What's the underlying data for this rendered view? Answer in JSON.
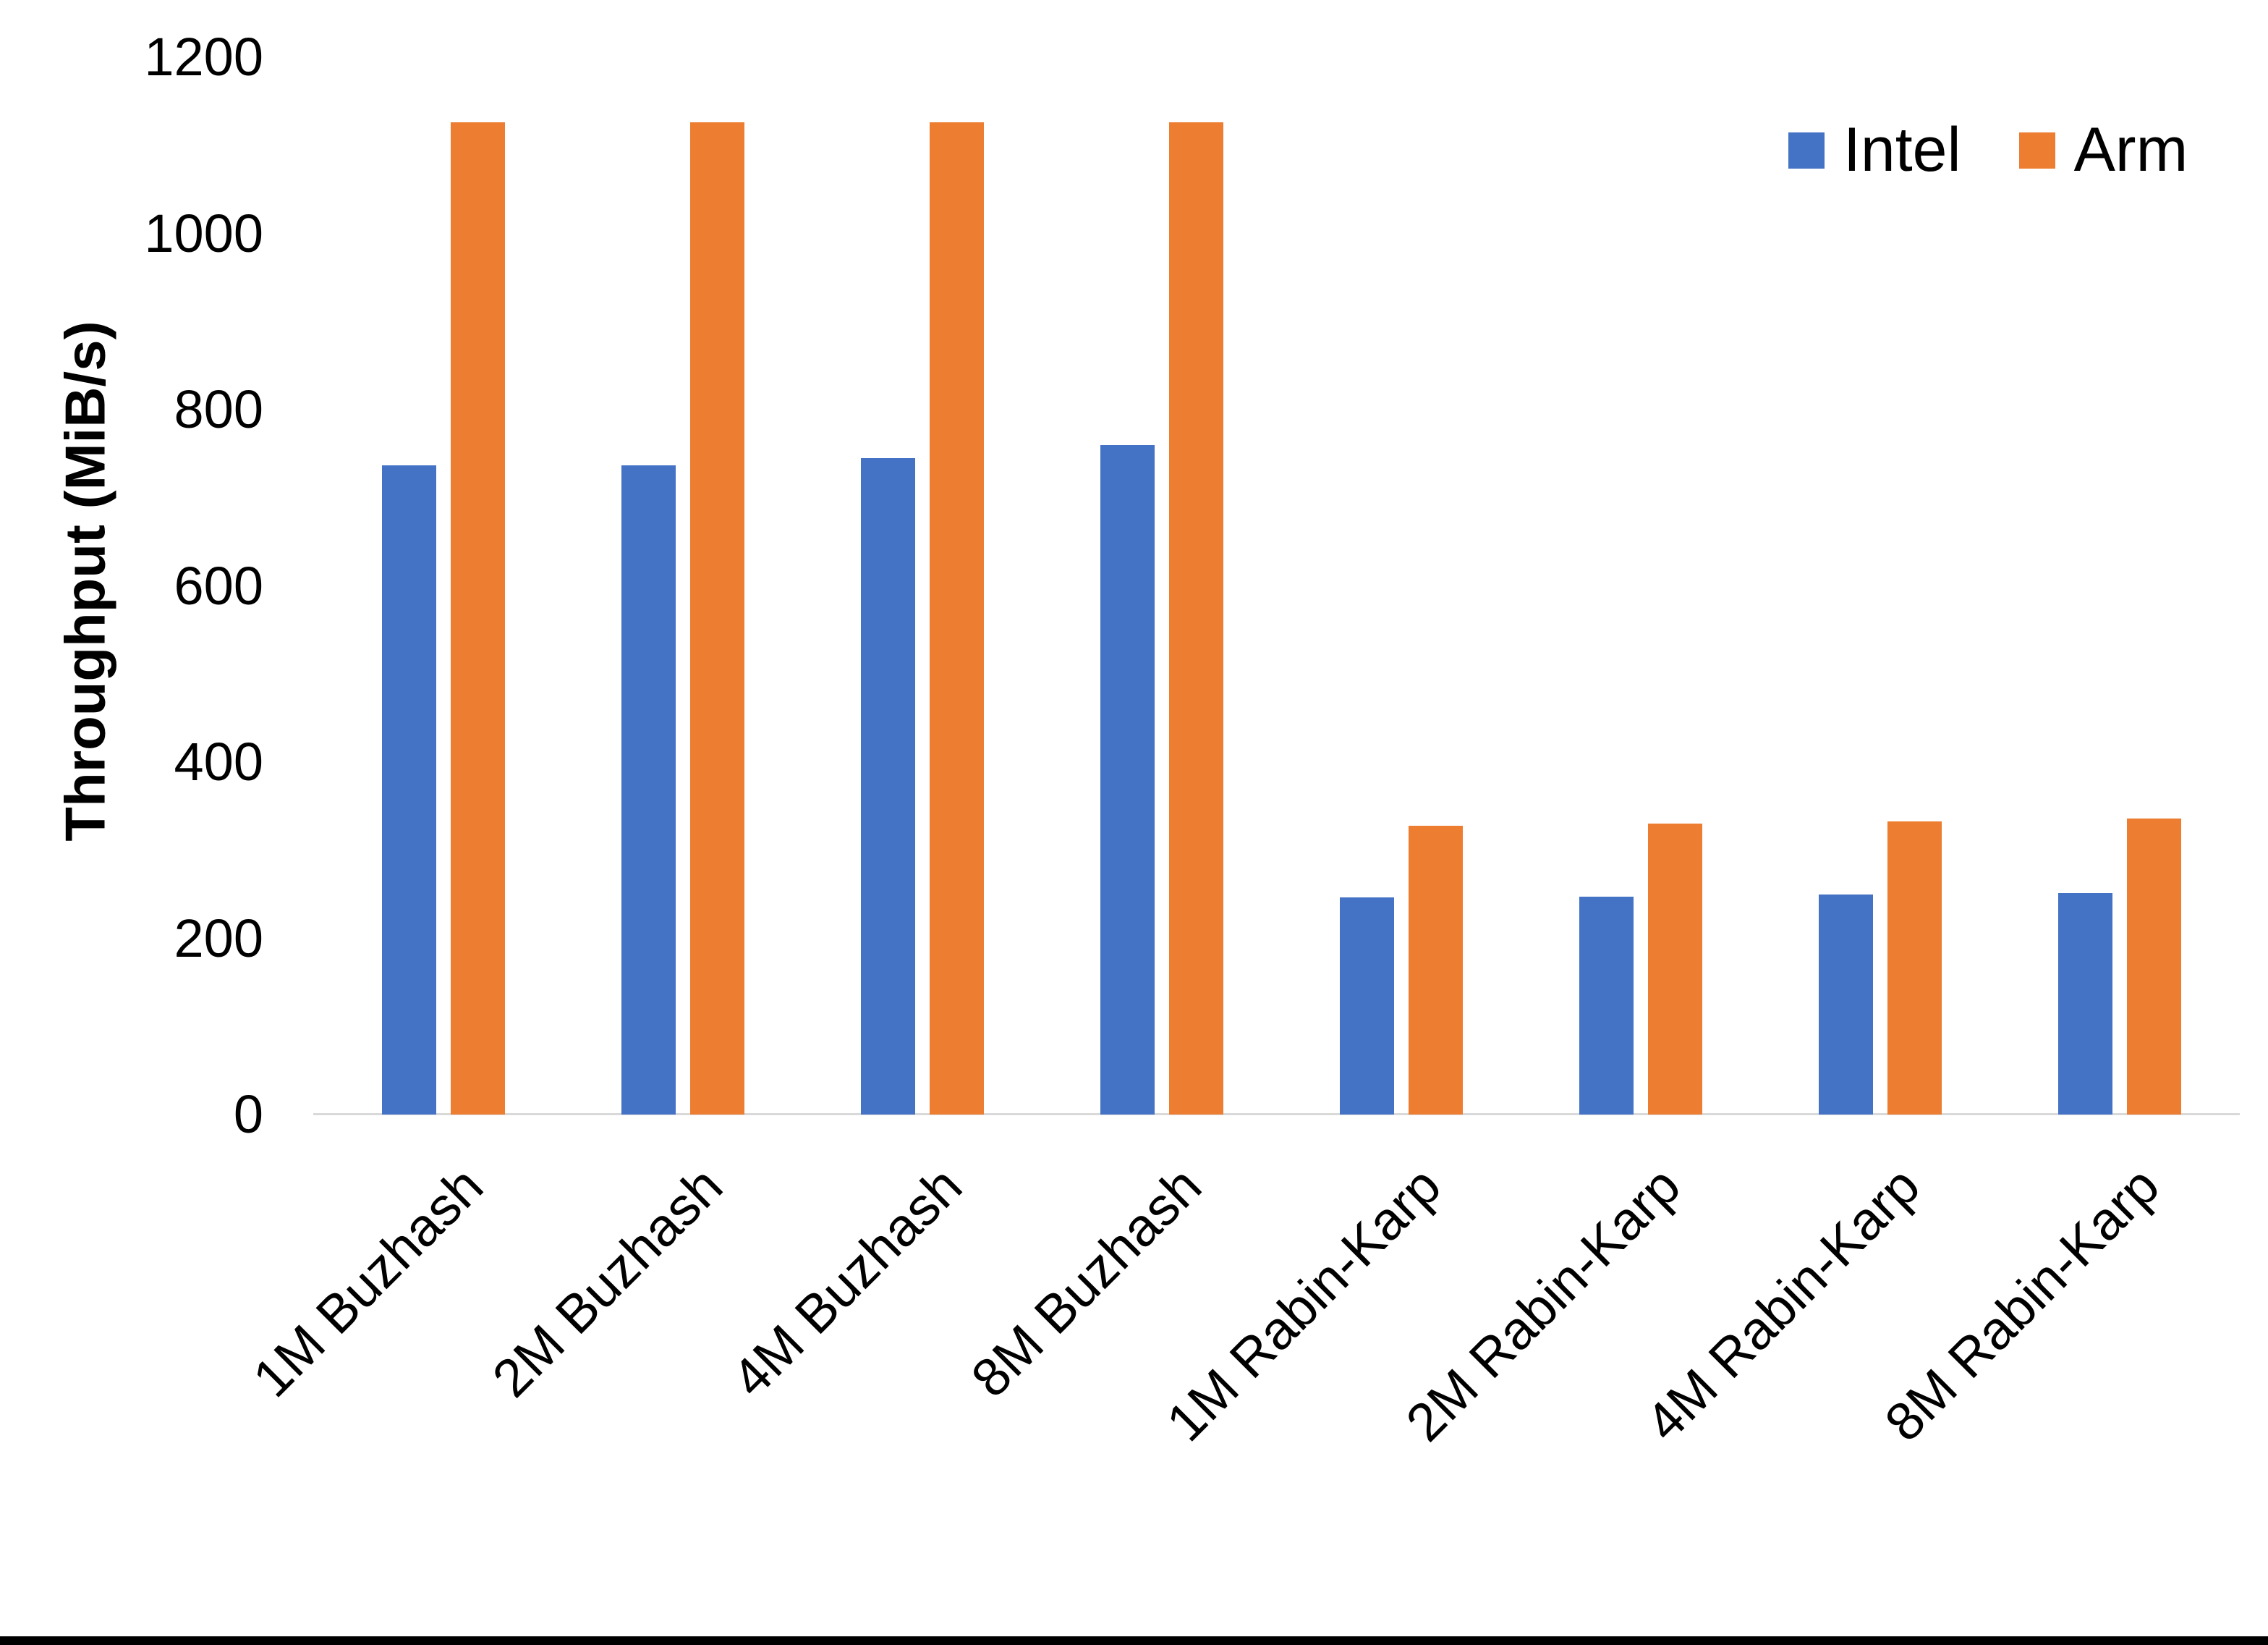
{
  "chart_data": {
    "type": "bar",
    "title": "",
    "ylabel": "Throughput (MiB/s)",
    "xlabel": "",
    "categories": [
      "1M Buzhash",
      "2M Buzhash",
      "4M Buzhash",
      "8M Buzhash",
      "1M Rabin-Karp",
      "2M Rabin-Karp",
      "4M Rabin-Karp",
      "8M Rabin-Karp"
    ],
    "series": [
      {
        "name": "Intel",
        "color": "#4472C4",
        "values": [
          737,
          737,
          745,
          760,
          246,
          247,
          250,
          251
        ]
      },
      {
        "name": "Arm",
        "color": "#ED7D31",
        "values": [
          1126,
          1126,
          1126,
          1126,
          328,
          330,
          333,
          336
        ]
      }
    ],
    "ylim": [
      0,
      1200
    ],
    "yticks": [
      0,
      200,
      400,
      600,
      800,
      1000,
      1200
    ],
    "grid": false,
    "legend_position": "top-right"
  },
  "colors": {
    "axis_line": "#D9D9D9",
    "text": "#000000",
    "background": "#FFFFFF",
    "bottom_border": "#000000"
  }
}
